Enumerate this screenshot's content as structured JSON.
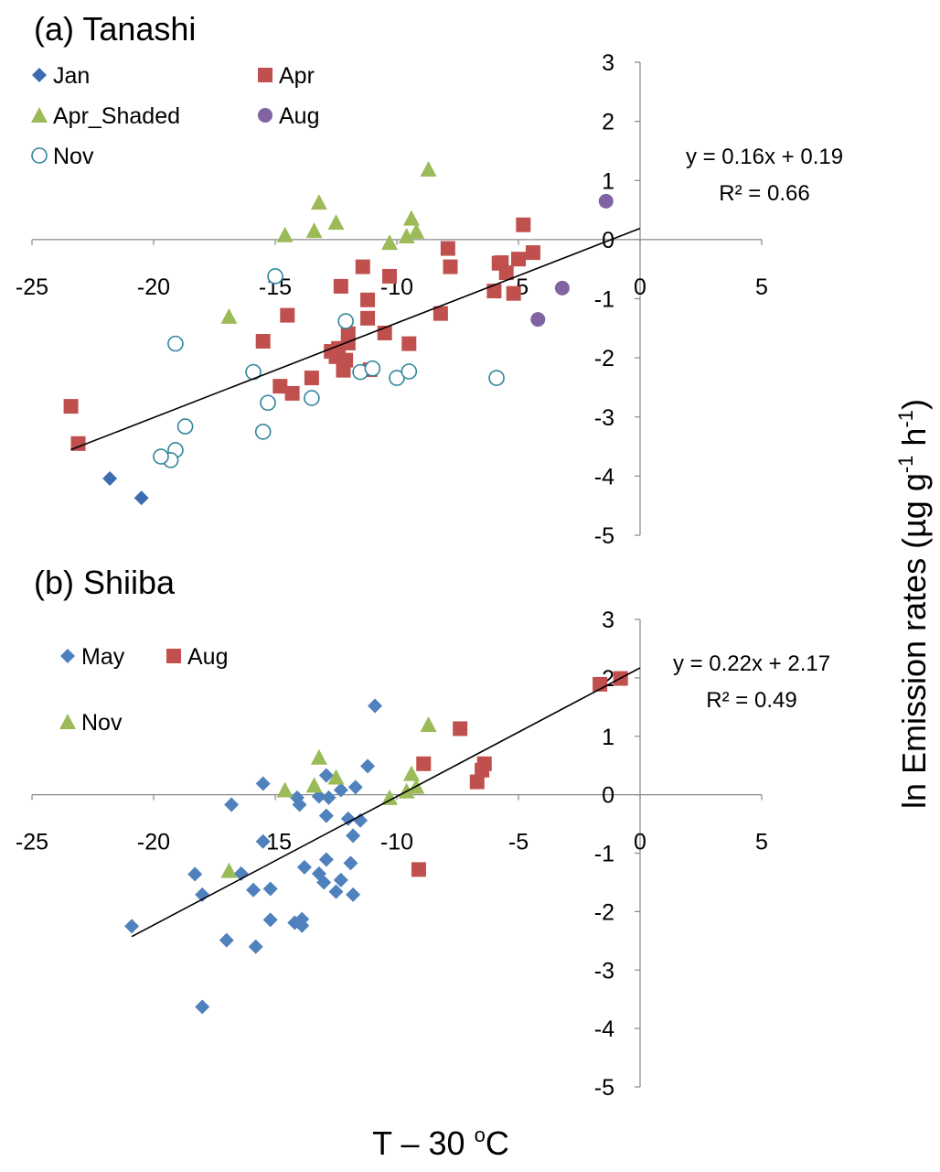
{
  "x_label_parts": [
    "T – 30 ",
    "o",
    "C"
  ],
  "y_label_parts": [
    "ln Emission rates (µg g",
    "-1",
    " h",
    "-1",
    ")"
  ],
  "chart_data": [
    {
      "type": "scatter",
      "title": "(a)  Tanashi",
      "xlim": [
        -25,
        5
      ],
      "ylim": [
        -5,
        3
      ],
      "xticks": [
        -25,
        -20,
        -15,
        -10,
        -5,
        0,
        5
      ],
      "yticks": [
        -5,
        -4,
        -3,
        -2,
        -1,
        0,
        1,
        2,
        3
      ],
      "series": [
        {
          "name": "Jan",
          "color": "#3c6db0",
          "marker": "diamond",
          "x": [
            -21.8,
            -20.5,
            -19.6
          ],
          "y": [
            -4.04,
            -4.37,
            -3.68
          ]
        },
        {
          "name": "Apr",
          "color": "#c0504d",
          "marker": "square",
          "x": [
            -23.4,
            -23.1,
            -15.5,
            -14.8,
            -14.5,
            -14.3,
            -13.5,
            -12.7,
            -12.5,
            -12.4,
            -12.3,
            -12.2,
            -12.1,
            -12.0,
            -12.0,
            -11.4,
            -11.2,
            -11.2,
            -11.1,
            -10.5,
            -10.3,
            -9.5,
            -8.2,
            -7.9,
            -7.8,
            -6.0,
            -5.8,
            -5.7,
            -5.5,
            -5.2,
            -5.0,
            -4.8,
            -4.4
          ],
          "y": [
            -2.82,
            -3.45,
            -1.72,
            -2.48,
            -1.28,
            -2.6,
            -2.34,
            -1.89,
            -1.98,
            -1.84,
            -0.79,
            -2.21,
            -2.04,
            -1.75,
            -1.59,
            -0.46,
            -1.02,
            -1.33,
            -2.2,
            -1.58,
            -0.62,
            -1.76,
            -1.25,
            -0.15,
            -0.46,
            -0.87,
            -0.4,
            -0.39,
            -0.56,
            -0.91,
            -0.33,
            0.25,
            -0.22
          ]
        },
        {
          "name": "Apr_Shaded",
          "color": "#9bbb59",
          "marker": "triangle",
          "x": [
            -16.9,
            -14.6,
            -13.4,
            -13.2,
            -12.5,
            -10.3,
            -9.6,
            -9.4,
            -9.2,
            -8.7
          ],
          "y": [
            -1.3,
            0.08,
            0.15,
            0.63,
            0.29,
            -0.05,
            0.06,
            0.36,
            0.14,
            1.19
          ]
        },
        {
          "name": "Aug",
          "color": "#8064a2",
          "marker": "circle",
          "x": [
            -1.4,
            -3.2,
            -4.2
          ],
          "y": [
            0.65,
            -0.82,
            -1.35
          ]
        },
        {
          "name": "Nov",
          "color": "#31859c",
          "marker": "open-circle",
          "x": [
            -19.1,
            -18.7,
            -19.1,
            -19.3,
            -19.7,
            -15.9,
            -15.3,
            -15.5,
            -15.0,
            -13.5,
            -12.1,
            -11.5,
            -11.0,
            -10.0,
            -9.5,
            -5.9
          ],
          "y": [
            -1.76,
            -3.16,
            -3.56,
            -3.73,
            -3.67,
            -2.24,
            -2.76,
            -3.25,
            -0.62,
            -2.68,
            -1.38,
            -2.24,
            -2.18,
            -2.34,
            -2.23,
            -2.34
          ]
        }
      ],
      "trendline": {
        "slope": 0.16,
        "intercept": 0.19,
        "x_range": [
          -23.4,
          0
        ],
        "equation": "y = 0.16x + 0.19",
        "r2_label": "R² = 0.66"
      }
    },
    {
      "type": "scatter",
      "title": "(b) Shiiba",
      "xlim": [
        -25,
        5
      ],
      "ylim": [
        -5,
        3
      ],
      "xticks": [
        -25,
        -20,
        -15,
        -10,
        -5,
        0,
        5
      ],
      "yticks": [
        -5,
        -4,
        -3,
        -2,
        -1,
        0,
        1,
        2,
        3
      ],
      "series": [
        {
          "name": "May",
          "color": "#4f81bd",
          "marker": "diamond",
          "x": [
            -20.9,
            -18.3,
            -18.0,
            -18.0,
            -17.0,
            -16.8,
            -16.4,
            -15.9,
            -15.8,
            -15.5,
            -15.5,
            -15.2,
            -15.2,
            -14.2,
            -14.1,
            -14.0,
            -13.9,
            -13.9,
            -13.8,
            -13.2,
            -13.2,
            -13.0,
            -12.9,
            -12.9,
            -12.9,
            -12.8,
            -12.5,
            -12.3,
            -12.3,
            -12.0,
            -11.9,
            -11.8,
            -11.8,
            -11.7,
            -11.5,
            -11.2,
            -10.9
          ],
          "y": [
            -2.25,
            -1.36,
            -1.71,
            -3.63,
            -2.49,
            -0.17,
            -1.35,
            -1.63,
            -2.6,
            0.19,
            -0.8,
            -1.61,
            -2.14,
            -2.19,
            -0.05,
            -0.17,
            -2.24,
            -2.13,
            -1.24,
            -0.03,
            -1.35,
            -1.5,
            -1.11,
            -0.36,
            0.33,
            -0.05,
            -1.66,
            0.08,
            -1.46,
            -0.41,
            -1.17,
            -0.7,
            -1.71,
            0.13,
            -0.44,
            0.49,
            1.52
          ]
        },
        {
          "name": "Aug",
          "color": "#c0504d",
          "marker": "square",
          "x": [
            -9.1,
            -8.9,
            -7.4,
            -6.7,
            -6.5,
            -6.4,
            -1.65,
            -0.8
          ],
          "y": [
            -1.28,
            0.53,
            1.13,
            0.22,
            0.42,
            0.53,
            1.89,
            1.99
          ]
        },
        {
          "name": "Nov",
          "color": "#9bbb59",
          "marker": "triangle",
          "x": [
            -16.9,
            -14.6,
            -13.4,
            -13.2,
            -12.5,
            -10.3,
            -9.6,
            -9.4,
            -9.2,
            -8.7
          ],
          "y": [
            -1.3,
            0.08,
            0.16,
            0.64,
            0.3,
            -0.05,
            0.06,
            0.36,
            0.14,
            1.2
          ]
        }
      ],
      "trendline": {
        "slope": 0.22,
        "intercept": 2.17,
        "x_range": [
          -20.9,
          0
        ],
        "equation": "y = 0.22x + 2.17",
        "r2_label": "R² = 0.49"
      }
    }
  ]
}
